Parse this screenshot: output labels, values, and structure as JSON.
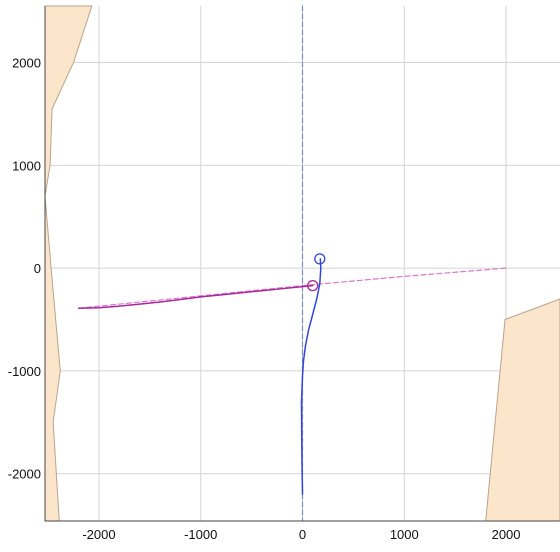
{
  "chart_data": {
    "type": "line",
    "title": "",
    "xlabel": "",
    "ylabel": "",
    "xlim": [
      -2530,
      2530
    ],
    "ylim": [
      -2460,
      2550
    ],
    "x_ticks": [
      -2000,
      -1000,
      0,
      1000,
      2000
    ],
    "y_ticks": [
      2000,
      1000,
      0,
      -1000,
      -2000
    ],
    "grid": true,
    "legend": "none",
    "colors": {
      "region_fill": "#fbe6cc",
      "region_stroke": "#b9a48c",
      "grid": "#d4d4d4",
      "blue": "#3247d6",
      "magenta": "#a8279b",
      "magenta_light": "#d877cc",
      "blue_dashed": "#7b8fc4"
    },
    "regions": [
      {
        "name": "left-boundary-region",
        "points": [
          [
            -2530,
            2550
          ],
          [
            -2070,
            2550
          ],
          [
            -2250,
            2000
          ],
          [
            -2460,
            1550
          ],
          [
            -2480,
            1000
          ],
          [
            -2530,
            700
          ],
          [
            -2470,
            0
          ],
          [
            -2380,
            -1000
          ],
          [
            -2450,
            -1500
          ],
          [
            -2390,
            -2460
          ],
          [
            -2530,
            -2460
          ]
        ]
      },
      {
        "name": "right-boundary-region",
        "points": [
          [
            1800,
            -2460
          ],
          [
            1990,
            -500
          ],
          [
            2530,
            -300
          ],
          [
            2530,
            -2460
          ]
        ]
      }
    ],
    "series": [
      {
        "color_key": "blue_dashed",
        "style": "dashed",
        "x": [
          0,
          0
        ],
        "y": [
          2550,
          -2460
        ]
      },
      {
        "color_key": "magenta_light",
        "style": "dashed",
        "x": [
          -2200,
          -1000,
          0,
          1000,
          2000
        ],
        "y": [
          -390,
          -270,
          -170,
          -80,
          0
        ]
      },
      {
        "color_key": "magenta",
        "style": "solid",
        "x": [
          -2200,
          -2000,
          -1800,
          -1600,
          -1400,
          -1200,
          -1000,
          -800,
          -600,
          -400,
          -200,
          0,
          100
        ],
        "y": [
          -390,
          -385,
          -370,
          -350,
          -330,
          -305,
          -280,
          -260,
          -240,
          -220,
          -200,
          -180,
          -170
        ]
      },
      {
        "color_key": "blue",
        "style": "solid",
        "x": [
          175,
          180,
          170,
          140,
          100,
          60,
          30,
          10,
          0,
          -10,
          -8,
          -5,
          0
        ],
        "y": [
          90,
          0,
          -150,
          -300,
          -450,
          -600,
          -750,
          -900,
          -1050,
          -1300,
          -1600,
          -1900,
          -2200
        ]
      }
    ],
    "markers": [
      {
        "x": 170,
        "y": 90,
        "color_key": "blue",
        "shape": "circle"
      },
      {
        "x": 100,
        "y": -170,
        "color_key": "magenta",
        "shape": "circle"
      }
    ]
  }
}
